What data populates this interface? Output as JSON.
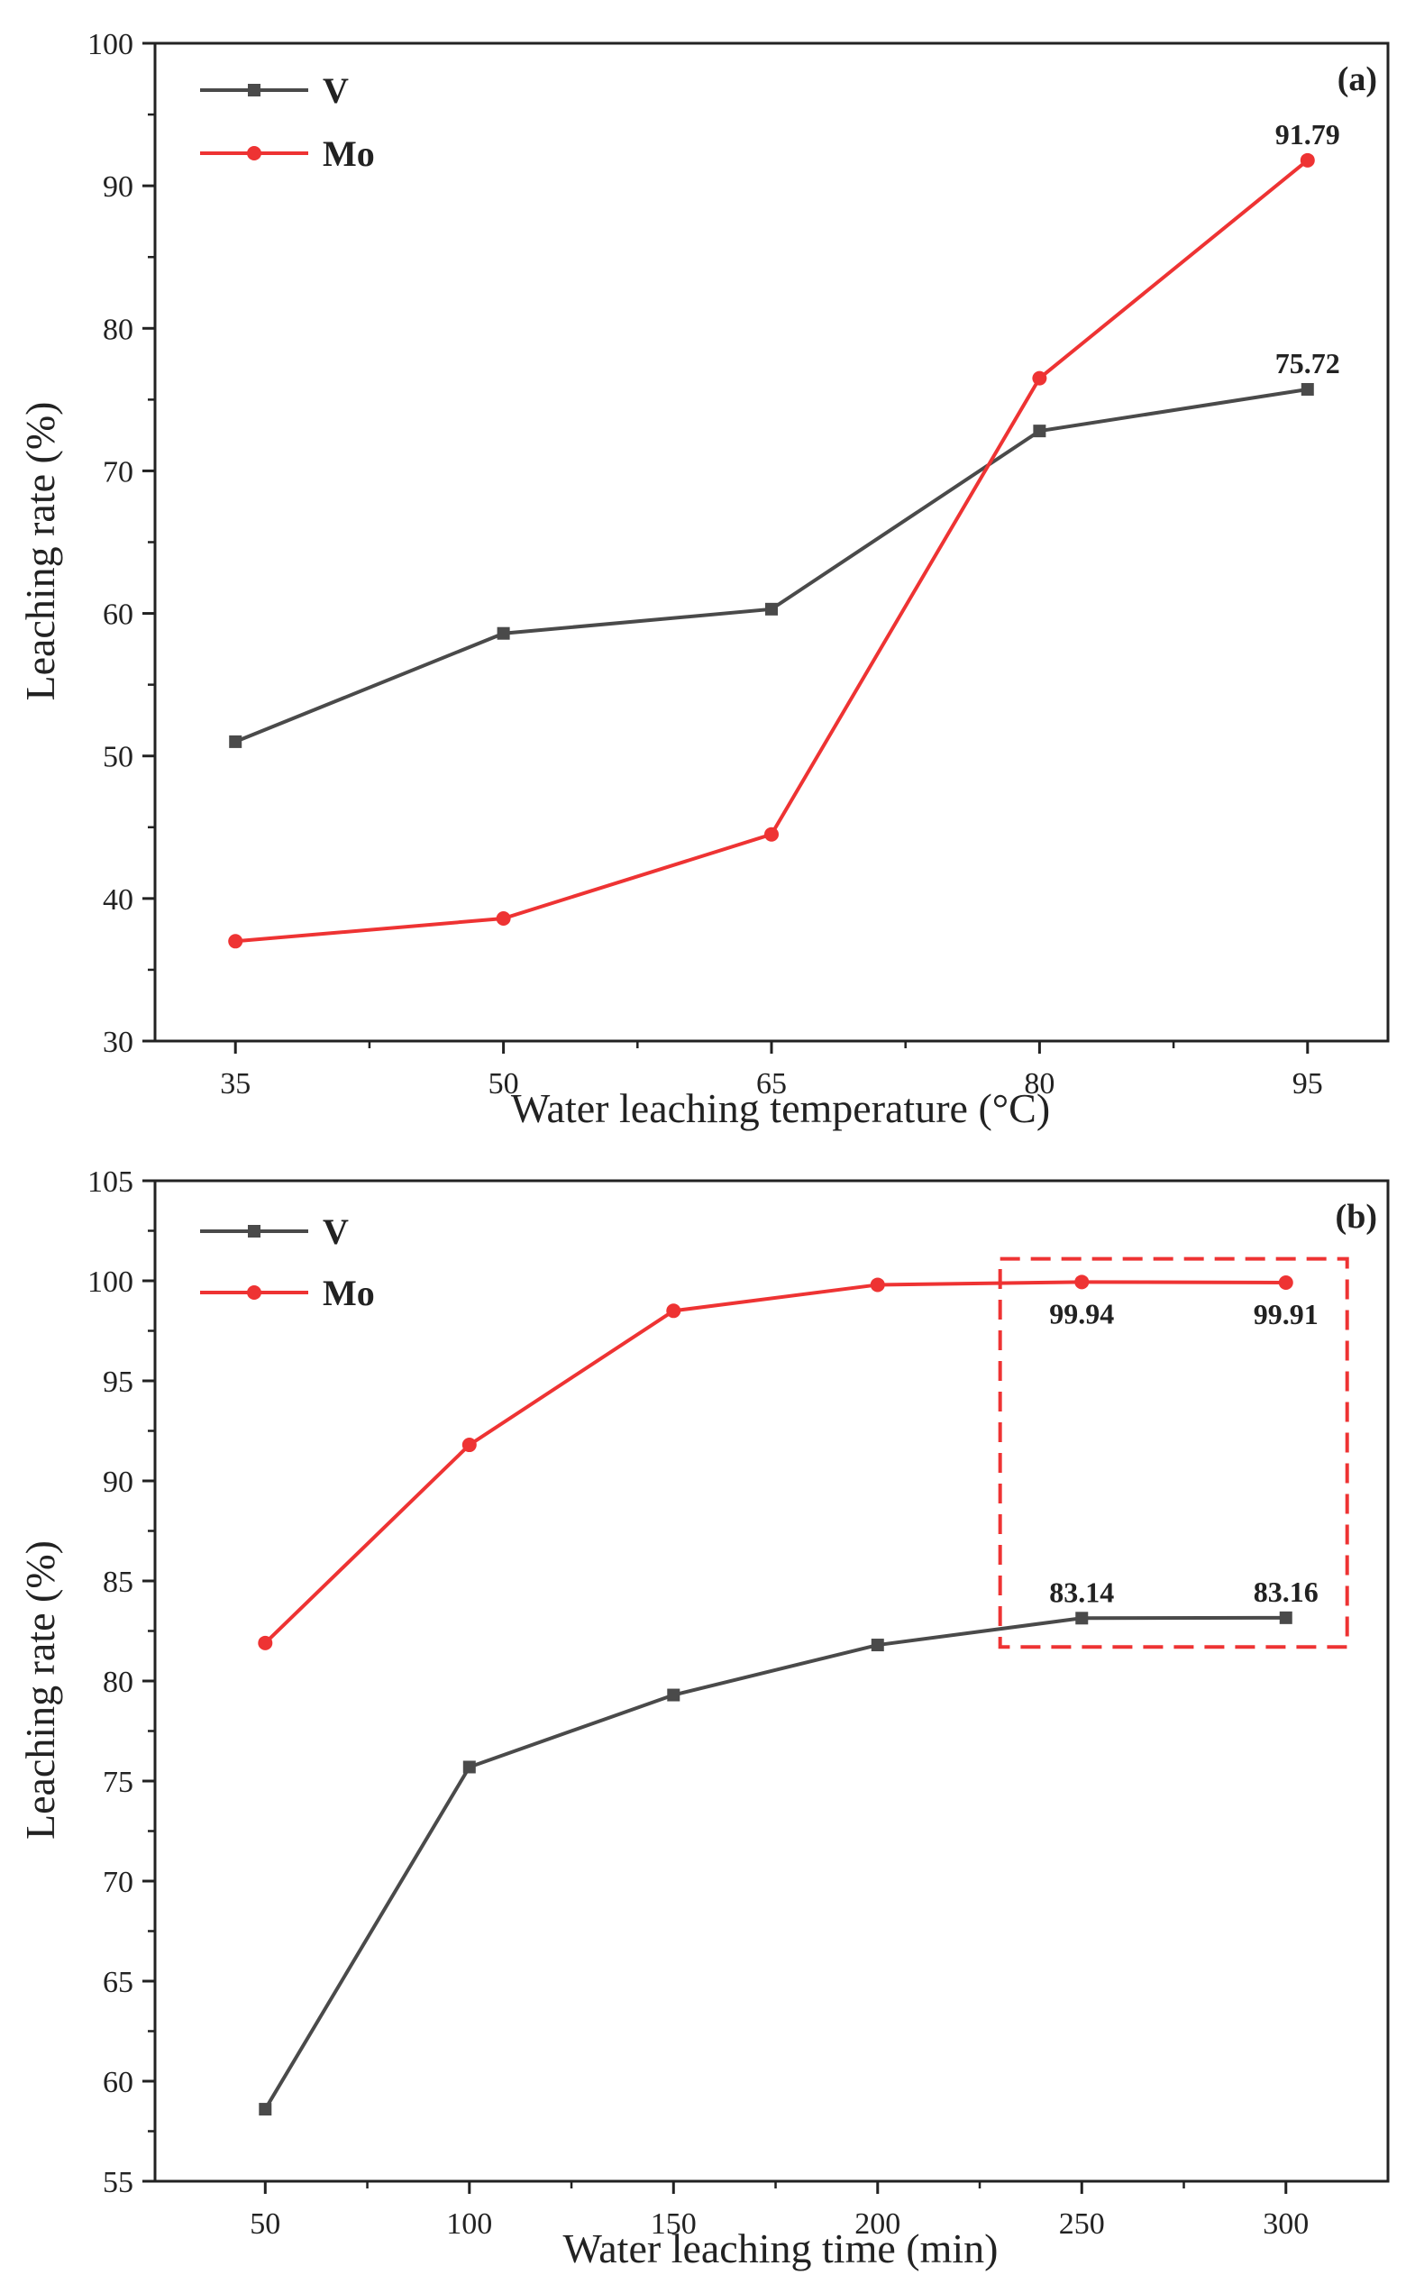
{
  "chart_data": [
    {
      "type": "line",
      "panel_label": "(a)",
      "xlabel": "Water leaching temperature (°C)",
      "ylabel": "Leaching rate (%)",
      "x": [
        35,
        50,
        65,
        80,
        95
      ],
      "x_tick_labels": [
        "35",
        "50",
        "65",
        "80",
        "95"
      ],
      "xlim": [
        30.5,
        99.5
      ],
      "ylim": [
        30,
        100
      ],
      "y_ticks": [
        30,
        40,
        50,
        60,
        70,
        80,
        90,
        100
      ],
      "grid": false,
      "legend_position": "top-left",
      "series": [
        {
          "name": "V",
          "color": "#4a4a4a",
          "marker": "square",
          "values": [
            51.0,
            58.6,
            60.3,
            72.8,
            75.72
          ]
        },
        {
          "name": "Mo",
          "color": "#ee3333",
          "marker": "circle",
          "values": [
            37.0,
            38.6,
            44.5,
            76.5,
            91.79
          ]
        }
      ],
      "annotations": [
        {
          "text": "91.79",
          "series": "Mo",
          "x": 95,
          "position": "above"
        },
        {
          "text": "75.72",
          "series": "V",
          "x": 95,
          "position": "above"
        }
      ]
    },
    {
      "type": "line",
      "panel_label": "(b)",
      "xlabel": "Water leaching time (min)",
      "ylabel": "Leaching rate (%)",
      "x": [
        50,
        100,
        150,
        200,
        250,
        300
      ],
      "x_tick_labels": [
        "50",
        "100",
        "150",
        "200",
        "250",
        "300"
      ],
      "xlim": [
        23,
        325
      ],
      "ylim": [
        55,
        105
      ],
      "y_ticks": [
        55,
        60,
        65,
        70,
        75,
        80,
        85,
        90,
        95,
        100,
        105
      ],
      "grid": false,
      "legend_position": "top-left",
      "series": [
        {
          "name": "V",
          "color": "#4a4a4a",
          "marker": "square",
          "values": [
            58.6,
            75.7,
            79.3,
            81.8,
            83.14,
            83.16
          ]
        },
        {
          "name": "Mo",
          "color": "#ee3333",
          "marker": "circle",
          "values": [
            81.9,
            91.8,
            98.5,
            99.8,
            99.94,
            99.91
          ]
        }
      ],
      "annotations": [
        {
          "text": "99.94",
          "series": "Mo",
          "x": 250,
          "position": "below"
        },
        {
          "text": "99.91",
          "series": "Mo",
          "x": 300,
          "position": "below"
        },
        {
          "text": "83.14",
          "series": "V",
          "x": 250,
          "position": "above"
        },
        {
          "text": "83.16",
          "series": "V",
          "x": 300,
          "position": "above"
        }
      ],
      "highlight_box": {
        "x_range": [
          230,
          315
        ],
        "y_range": [
          81.7,
          101.1
        ],
        "color": "#ee3333",
        "style": "dashed"
      }
    }
  ]
}
